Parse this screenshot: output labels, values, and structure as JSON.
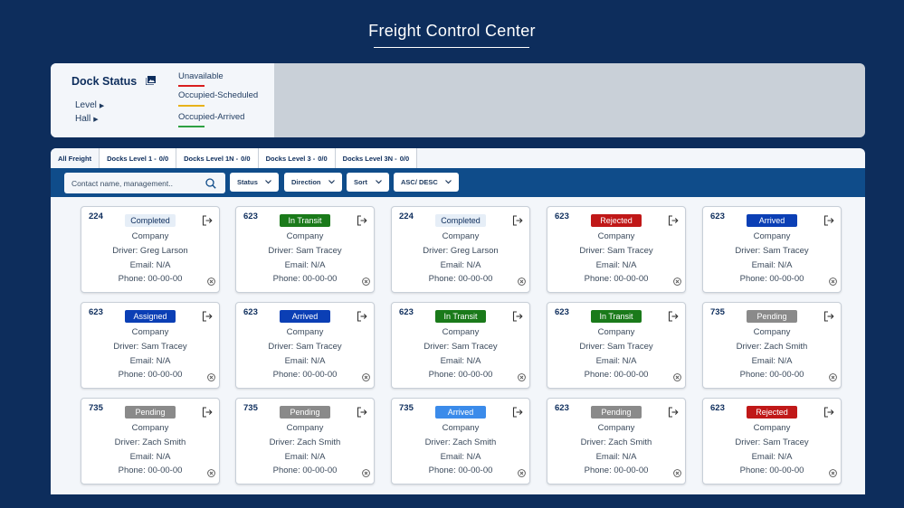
{
  "app": {
    "title": "Freight Control Center"
  },
  "dock_status": {
    "title": "Dock Status",
    "links": [
      {
        "label": "Level"
      },
      {
        "label": "Hall"
      }
    ],
    "legend": [
      {
        "label": "Unavailable",
        "color": "#d91e1e"
      },
      {
        "label": "Occupied-Scheduled",
        "color": "#e8b21a"
      },
      {
        "label": "Occupied-Arrived",
        "color": "#2ea043"
      }
    ]
  },
  "tabs": [
    {
      "label": "All Freight",
      "count": ""
    },
    {
      "label": "Docks Level 1 -",
      "count": "0/0"
    },
    {
      "label": "Docks Level 1N -",
      "count": "0/0"
    },
    {
      "label": "Docks Level 3 -",
      "count": "0/0"
    },
    {
      "label": "Docks Level 3N -",
      "count": "0/0"
    }
  ],
  "toolbar": {
    "search_placeholder": "Contact name, management..",
    "filters": [
      {
        "label": "Status"
      },
      {
        "label": "Direction"
      },
      {
        "label": "Sort"
      },
      {
        "label": "ASC/ DESC"
      }
    ]
  },
  "status_styles": {
    "Completed": {
      "bg": "#e6eef7",
      "fg": "#0d2d5c"
    },
    "In Transit": {
      "bg": "#1a7a1a",
      "fg": "#ffffff"
    },
    "Rejected": {
      "bg": "#c01818",
      "fg": "#ffffff"
    },
    "Arrived": {
      "bg": "#0b3fb5",
      "fg": "#ffffff"
    },
    "Assigned": {
      "bg": "#0b3fb5",
      "fg": "#ffffff"
    },
    "Pending": {
      "bg": "#8a8a8a",
      "fg": "#ffffff"
    },
    "ArrivedLight": {
      "bg": "#3b8bea",
      "fg": "#ffffff"
    }
  },
  "cards": [
    {
      "id": "224",
      "status": "Completed",
      "company": "Company",
      "driver": "Driver: Greg Larson",
      "email": "Email: N/A",
      "phone": "Phone: 00-00-00"
    },
    {
      "id": "623",
      "status": "In Transit",
      "company": "Company",
      "driver": "Driver: Sam Tracey",
      "email": "Email: N/A",
      "phone": "Phone: 00-00-00"
    },
    {
      "id": "224",
      "status": "Completed",
      "company": "Company",
      "driver": "Driver: Greg Larson",
      "email": "Email: N/A",
      "phone": "Phone: 00-00-00"
    },
    {
      "id": "623",
      "status": "Rejected",
      "company": "Company",
      "driver": "Driver: Sam Tracey",
      "email": "Email: N/A",
      "phone": "Phone: 00-00-00"
    },
    {
      "id": "623",
      "status": "Arrived",
      "company": "Company",
      "driver": "Driver: Sam Tracey",
      "email": "Email: N/A",
      "phone": "Phone: 00-00-00"
    },
    {
      "id": "623",
      "status": "Assigned",
      "company": "Company",
      "driver": "Driver: Sam Tracey",
      "email": "Email: N/A",
      "phone": "Phone: 00-00-00"
    },
    {
      "id": "623",
      "status": "Arrived",
      "company": "Company",
      "driver": "Driver: Sam Tracey",
      "email": "Email: N/A",
      "phone": "Phone: 00-00-00"
    },
    {
      "id": "623",
      "status": "In Transit",
      "company": "Company",
      "driver": "Driver: Sam Tracey",
      "email": "Email: N/A",
      "phone": "Phone: 00-00-00"
    },
    {
      "id": "623",
      "status": "In Transit",
      "company": "Company",
      "driver": "Driver: Sam Tracey",
      "email": "Email: N/A",
      "phone": "Phone: 00-00-00"
    },
    {
      "id": "735",
      "status": "Pending",
      "company": "Company",
      "driver": "Driver: Zach Smith",
      "email": "Email: N/A",
      "phone": "Phone: 00-00-00"
    },
    {
      "id": "735",
      "status": "Pending",
      "company": "Company",
      "driver": "Driver: Zach Smith",
      "email": "Email: N/A",
      "phone": "Phone: 00-00-00"
    },
    {
      "id": "735",
      "status": "Pending",
      "company": "Company",
      "driver": "Driver: Zach Smith",
      "email": "Email: N/A",
      "phone": "Phone: 00-00-00"
    },
    {
      "id": "735",
      "status": "Arrived",
      "style": "ArrivedLight",
      "company": "Company",
      "driver": "Driver: Zach Smith",
      "email": "Email: N/A",
      "phone": "Phone: 00-00-00"
    },
    {
      "id": "623",
      "status": "Pending",
      "company": "Company",
      "driver": "Driver: Zach Smith",
      "email": "Email: N/A",
      "phone": "Phone: 00-00-00"
    },
    {
      "id": "623",
      "status": "Rejected",
      "company": "Company",
      "driver": "Driver: Sam Tracey",
      "email": "Email: N/A",
      "phone": "Phone: 00-00-00"
    }
  ]
}
